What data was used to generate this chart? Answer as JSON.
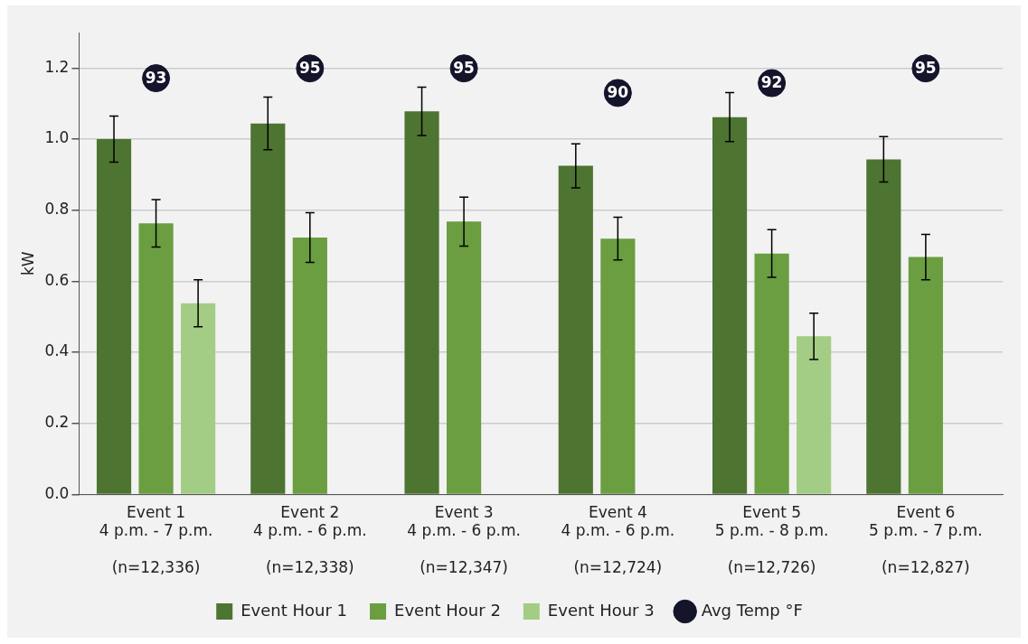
{
  "chart_data": {
    "type": "bar",
    "ylabel": "kW",
    "categories": [
      "Event 1\n4 p.m. - 7 p.m.\n\n(n=12,336)",
      "Event 2\n4 p.m. - 6 p.m.\n\n(n=12,338)",
      "Event 3\n4 p.m. - 6 p.m.\n\n(n=12,347)",
      "Event 4\n4 p.m. - 6 p.m.\n\n(n=12,724)",
      "Event 5\n5 p.m. - 8 p.m.\n\n(n=12,726)",
      "Event 6\n5 p.m. - 7 p.m.\n\n(n=12,827)"
    ],
    "series": [
      {
        "name": "Event Hour 1",
        "color": "#4d7431",
        "values": [
          1.0,
          1.044,
          1.078,
          0.925,
          1.062,
          0.943
        ],
        "errors": [
          0.065,
          0.074,
          0.068,
          0.062,
          0.069,
          0.064
        ]
      },
      {
        "name": "Event Hour 2",
        "color": "#6a9e41",
        "values": [
          0.763,
          0.723,
          0.768,
          0.72,
          0.678,
          0.668
        ],
        "errors": [
          0.067,
          0.07,
          0.069,
          0.06,
          0.067,
          0.064
        ]
      },
      {
        "name": "Event Hour 3",
        "color": "#a3cd84",
        "values": [
          0.538,
          null,
          null,
          null,
          0.445,
          null
        ],
        "errors": [
          0.066,
          null,
          null,
          null,
          0.065,
          null
        ]
      },
      {
        "name": "Avg Temp °F",
        "type": "scatter",
        "axis": "y2",
        "color": "#14142b",
        "values": [
          93,
          95,
          95,
          90,
          92,
          95
        ],
        "value_labels": [
          "93",
          "95",
          "95",
          "90",
          "92",
          "95"
        ]
      }
    ],
    "ylim": [
      0,
      1.3
    ],
    "yticks": [
      {
        "value": 0,
        "label": "0.0"
      },
      0.2,
      0.4,
      0.6,
      0.8,
      {
        "value": 1,
        "label": "1.0"
      },
      1.2
    ],
    "y2lim": [
      8.3,
      102.3
    ],
    "grid": "y",
    "legend": "bottom",
    "marker": "circle"
  }
}
